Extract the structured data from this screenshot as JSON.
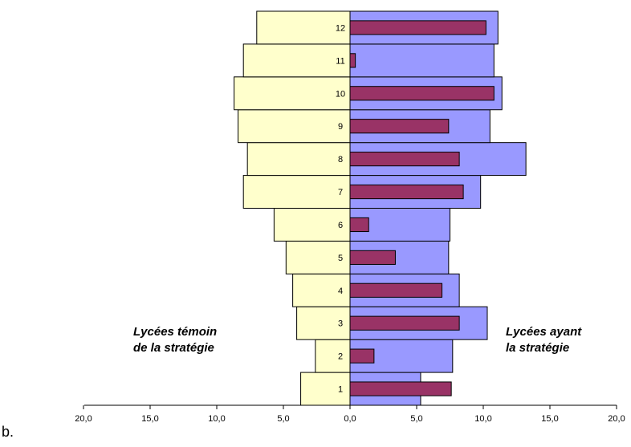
{
  "panel_label": "b.",
  "chart_data": {
    "type": "bar",
    "orientation": "horizontal-population-pyramid",
    "categories": [
      "1",
      "2",
      "3",
      "4",
      "5",
      "6",
      "7",
      "8",
      "9",
      "10",
      "11",
      "12"
    ],
    "series": [
      {
        "name": "Lycées témoin de la stratégie",
        "side": "left",
        "color": "#ffffcc",
        "values": [
          3.7,
          2.6,
          4.0,
          4.3,
          4.8,
          5.7,
          8.0,
          7.7,
          8.4,
          8.7,
          8.0,
          7.0
        ]
      },
      {
        "name": "Lycées ayant la stratégie",
        "side": "right",
        "color": "#9999ff",
        "values": [
          5.3,
          7.7,
          10.3,
          8.2,
          7.4,
          7.5,
          9.8,
          13.2,
          10.5,
          11.4,
          10.8,
          11.1
        ]
      },
      {
        "name": "",
        "side": "right",
        "color": "#993366",
        "narrow": true,
        "values": [
          7.6,
          1.8,
          8.2,
          6.9,
          3.4,
          1.4,
          8.5,
          8.2,
          7.4,
          10.8,
          0.4,
          10.2
        ]
      }
    ],
    "xticks": [
      "20,0",
      "15,0",
      "10,0",
      "5,0",
      "0,0",
      "5,0",
      "10,0",
      "15,0",
      "20,0"
    ],
    "xlim": [
      -20,
      20
    ],
    "left_label_lines": [
      "Lycées témoin",
      "de la stratégie"
    ],
    "right_label_lines": [
      "Lycées ayant",
      "la stratégie"
    ]
  }
}
